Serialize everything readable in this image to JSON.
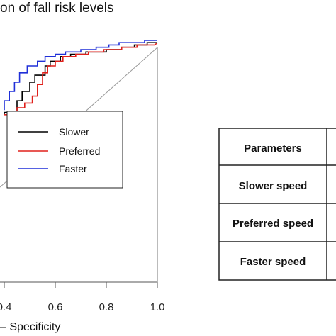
{
  "chart_data": {
    "type": "line",
    "title": "on of fall risk levels",
    "xlabel": "– Specificity",
    "xlim": [
      0.0,
      1.0
    ],
    "ylim": [
      0.0,
      1.0
    ],
    "x_tick_labels": [
      "0.4",
      "0.6",
      "0.8",
      "1.0"
    ],
    "x_ticks": [
      0.4,
      0.6,
      0.8,
      1.0
    ],
    "grid": false,
    "legend_position": "upper-left",
    "reference_line": true,
    "series": [
      {
        "name": "Slower",
        "color": "#000000",
        "x": [
          0.4,
          0.4,
          0.42,
          0.45,
          0.45,
          0.47,
          0.47,
          0.5,
          0.5,
          0.52,
          0.52,
          0.56,
          0.56,
          0.58,
          0.58,
          0.62,
          0.62,
          0.66,
          0.66,
          0.72,
          0.72,
          0.8,
          0.8,
          0.86,
          0.86,
          0.91,
          0.91,
          0.96,
          0.96,
          0.99,
          1.0
        ],
        "y": [
          0.72,
          0.73,
          0.73,
          0.73,
          0.78,
          0.78,
          0.82,
          0.82,
          0.86,
          0.86,
          0.89,
          0.89,
          0.93,
          0.93,
          0.95,
          0.95,
          0.97,
          0.97,
          0.98,
          0.98,
          0.99,
          0.99,
          1.0,
          1.0,
          1.01,
          1.01,
          1.02,
          1.02,
          1.03,
          1.03,
          1.03
        ]
      },
      {
        "name": "Preferred",
        "color": "#e0201b",
        "x": [
          0.4,
          0.4,
          0.45,
          0.45,
          0.48,
          0.48,
          0.51,
          0.51,
          0.53,
          0.53,
          0.55,
          0.55,
          0.57,
          0.57,
          0.6,
          0.6,
          0.63,
          0.63,
          0.68,
          0.68,
          0.73,
          0.73,
          0.79,
          0.79,
          0.86,
          0.86,
          0.92,
          0.92,
          0.99,
          1.0
        ],
        "y": [
          0.72,
          0.72,
          0.72,
          0.75,
          0.75,
          0.77,
          0.77,
          0.8,
          0.8,
          0.85,
          0.85,
          0.9,
          0.9,
          0.93,
          0.93,
          0.95,
          0.95,
          0.97,
          0.97,
          0.98,
          0.98,
          0.99,
          0.99,
          1.0,
          1.0,
          1.01,
          1.01,
          1.02,
          1.02,
          1.03
        ]
      },
      {
        "name": "Faster",
        "color": "#1f2fd8",
        "x": [
          0.4,
          0.4,
          0.42,
          0.42,
          0.44,
          0.44,
          0.46,
          0.46,
          0.49,
          0.49,
          0.53,
          0.53,
          0.56,
          0.56,
          0.6,
          0.6,
          0.64,
          0.64,
          0.7,
          0.7,
          0.76,
          0.76,
          0.81,
          0.81,
          0.85,
          0.85,
          0.9,
          0.9,
          0.95,
          0.95,
          1.0
        ],
        "y": [
          0.74,
          0.78,
          0.78,
          0.82,
          0.82,
          0.86,
          0.86,
          0.9,
          0.9,
          0.93,
          0.93,
          0.95,
          0.95,
          0.97,
          0.97,
          0.98,
          0.98,
          0.99,
          0.99,
          1.0,
          1.0,
          1.01,
          1.01,
          1.02,
          1.02,
          1.03,
          1.03,
          1.03,
          1.03,
          1.04,
          1.04
        ]
      }
    ]
  },
  "table": {
    "rows": [
      "Parameters",
      "Slower speed",
      "Preferred speed",
      "Faster speed"
    ]
  }
}
